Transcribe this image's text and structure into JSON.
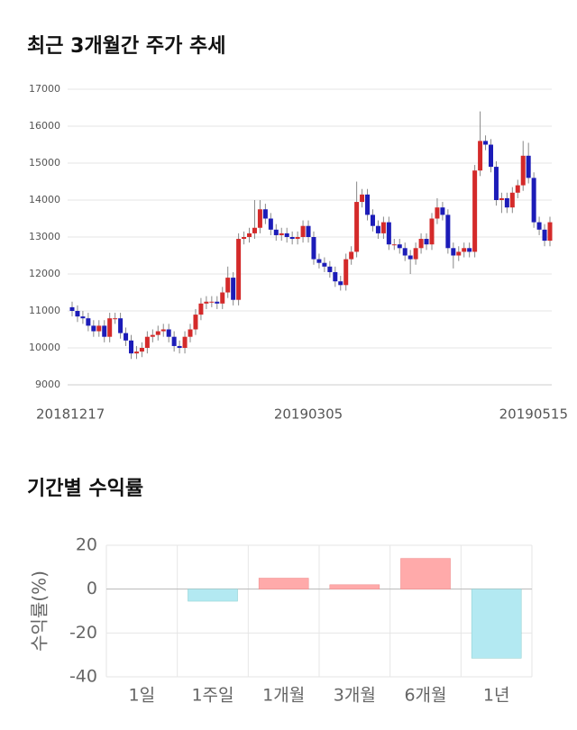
{
  "chart_data": [
    {
      "type": "candlestick",
      "title": "최근 3개월간 주가 추세",
      "categories": [
        "20181217",
        null,
        null,
        null,
        null,
        null,
        null,
        null,
        null,
        null,
        null,
        null,
        null,
        null,
        null,
        null,
        null,
        null,
        null,
        null,
        null,
        null,
        null,
        null,
        null,
        null,
        null,
        null,
        null,
        null,
        null,
        null,
        null,
        null,
        null,
        null,
        null,
        null,
        null,
        null,
        null,
        null,
        null,
        null,
        "20190305",
        null,
        null,
        null,
        null,
        null,
        null,
        null,
        null,
        null,
        null,
        null,
        null,
        null,
        null,
        null,
        null,
        null,
        null,
        null,
        null,
        null,
        null,
        null,
        null,
        null,
        null,
        null,
        null,
        null,
        null,
        null,
        null,
        null,
        null,
        null,
        null,
        null,
        null,
        null,
        null,
        null,
        null,
        null,
        null,
        "20190515"
      ],
      "open": [
        11100,
        11000,
        10850,
        10800,
        10600,
        10450,
        10600,
        10300,
        10800,
        10800,
        10400,
        10200,
        9850,
        9900,
        10000,
        10300,
        10350,
        10450,
        10500,
        10300,
        10050,
        10000,
        10300,
        10500,
        10900,
        11200,
        11250,
        11250,
        11200,
        11500,
        11900,
        11300,
        12950,
        13000,
        13100,
        13250,
        13750,
        13500,
        13200,
        13050,
        13100,
        13000,
        12950,
        13000,
        13300,
        13000,
        12400,
        12300,
        12200,
        12050,
        11800,
        11700,
        12400,
        12600,
        13950,
        14150,
        13600,
        13300,
        13100,
        13400,
        12800,
        12800,
        12700,
        12500,
        12400,
        12700,
        12950,
        12800,
        13500,
        13800,
        13600,
        12700,
        12500,
        12600,
        12700,
        12600,
        14800,
        15600,
        15500,
        14900,
        14000,
        14050,
        13800,
        14200,
        14400,
        15200,
        14600,
        13400,
        13200,
        12900
      ],
      "high": [
        11250,
        11150,
        11000,
        10950,
        10750,
        10750,
        10750,
        10950,
        10950,
        10950,
        10550,
        10350,
        10050,
        10150,
        10450,
        10500,
        10600,
        10650,
        10650,
        10450,
        10200,
        10450,
        10650,
        11050,
        11350,
        11400,
        11400,
        11400,
        11650,
        12200,
        12050,
        13100,
        13150,
        13250,
        14000,
        14000,
        13900,
        13650,
        13350,
        13250,
        13250,
        13150,
        13150,
        13450,
        13450,
        13150,
        12550,
        12450,
        12350,
        12200,
        11950,
        12550,
        12750,
        14500,
        14300,
        14300,
        13750,
        13450,
        13550,
        13550,
        12950,
        12950,
        12850,
        12650,
        12850,
        13100,
        13100,
        13650,
        14050,
        13950,
        13750,
        12850,
        12750,
        12850,
        12850,
        14950,
        16400,
        15750,
        15650,
        15050,
        14200,
        14200,
        14350,
        14550,
        15600,
        15550,
        14750,
        13550,
        13350,
        13550
      ],
      "low": [
        10850,
        10700,
        10650,
        10450,
        10300,
        10300,
        10150,
        10150,
        10650,
        10250,
        10050,
        9700,
        9700,
        9750,
        9850,
        10150,
        10200,
        10300,
        10150,
        9900,
        9850,
        9850,
        10150,
        10350,
        10750,
        11050,
        11100,
        11050,
        11050,
        11350,
        11150,
        11150,
        12800,
        12850,
        12950,
        13100,
        13350,
        13050,
        12900,
        12900,
        12850,
        12800,
        12800,
        12850,
        12850,
        12250,
        12150,
        12050,
        11900,
        11650,
        11550,
        11550,
        12250,
        12450,
        13800,
        13450,
        13150,
        12950,
        12950,
        12650,
        12650,
        12550,
        12350,
        12000,
        12250,
        12550,
        12650,
        12650,
        13350,
        13450,
        12550,
        12150,
        12350,
        12450,
        12450,
        12450,
        14650,
        15350,
        14750,
        13850,
        13650,
        13650,
        13650,
        14050,
        14250,
        14450,
        13250,
        13050,
        12750,
        12750
      ],
      "close": [
        11000,
        10850,
        10800,
        10600,
        10450,
        10600,
        10300,
        10800,
        10800,
        10400,
        10200,
        9850,
        9900,
        10000,
        10300,
        10350,
        10450,
        10500,
        10300,
        10050,
        10000,
        10300,
        10500,
        10900,
        11200,
        11250,
        11250,
        11200,
        11500,
        11900,
        11300,
        12950,
        13000,
        13100,
        13250,
        13750,
        13500,
        13200,
        13050,
        13100,
        13000,
        12950,
        13000,
        13300,
        13000,
        12400,
        12300,
        12200,
        12050,
        11800,
        11700,
        12400,
        12600,
        13950,
        14150,
        13600,
        13300,
        13100,
        13400,
        12800,
        12800,
        12700,
        12500,
        12400,
        12700,
        12950,
        12800,
        13500,
        13800,
        13600,
        12700,
        12500,
        12600,
        12700,
        12600,
        14800,
        15600,
        15500,
        14900,
        14000,
        14050,
        13800,
        14200,
        14400,
        15200,
        14600,
        13400,
        13200,
        12900,
        13400
      ],
      "up_color": "#d42a2a",
      "down_color": "#1c1cb8",
      "ylim": [
        9000,
        17000
      ],
      "yticks": [
        9000,
        10000,
        11000,
        12000,
        13000,
        14000,
        15000,
        16000,
        17000
      ],
      "grid": true
    },
    {
      "type": "bar",
      "title": "기간별 수익률",
      "ylabel": "수익률(%)",
      "categories": [
        "1일",
        "1주일",
        "1개월",
        "3개월",
        "6개월",
        "1년"
      ],
      "values": [
        0,
        -5.5,
        5,
        2,
        14,
        -31.5
      ],
      "positive_color": "#ffaaaa",
      "negative_color": "#b3e9f2",
      "ylim": [
        -40,
        20
      ],
      "yticks": [
        -40,
        -20,
        0,
        20
      ],
      "grid": true
    }
  ]
}
